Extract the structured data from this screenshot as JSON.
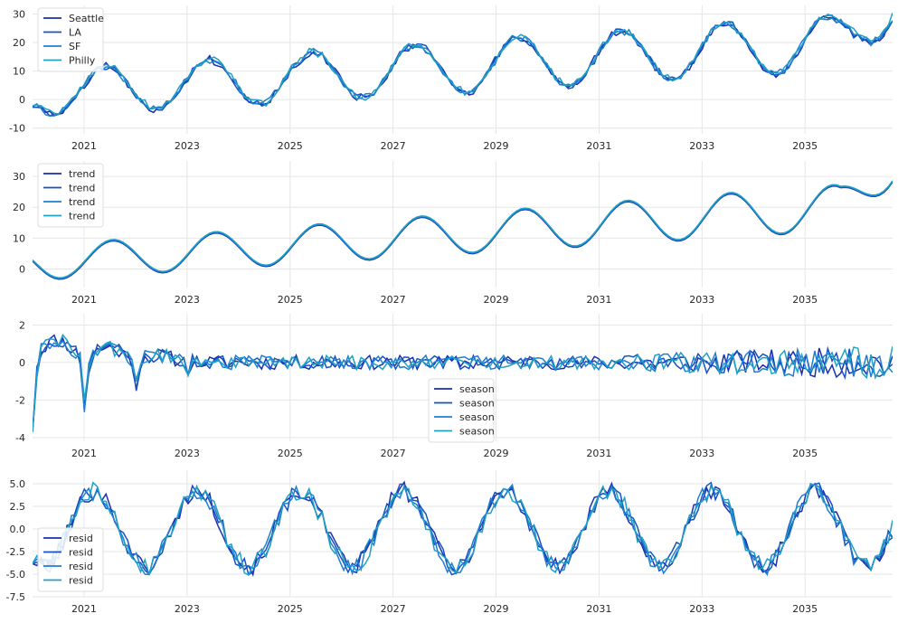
{
  "chart_data": [
    {
      "type": "line",
      "x_ticks": [
        "2021",
        "2023",
        "2025",
        "2027",
        "2029",
        "2031",
        "2033",
        "2035"
      ],
      "y_ticks": [
        -10,
        0,
        10,
        20,
        30
      ],
      "ylim": [
        -12,
        33
      ],
      "legend_position": "top-left",
      "grid": true,
      "series": [
        {
          "name": "Seattle",
          "color": "#1a2fb0"
        },
        {
          "name": "LA",
          "color": "#1552c2"
        },
        {
          "name": "SF",
          "color": "#1e7fd0"
        },
        {
          "name": "Philly",
          "color": "#1fa0c4"
        }
      ]
    },
    {
      "type": "line",
      "x_ticks": [
        "2021",
        "2023",
        "2025",
        "2027",
        "2029",
        "2031",
        "2033",
        "2035"
      ],
      "y_ticks": [
        0,
        10,
        20,
        30
      ],
      "ylim": [
        -6,
        35
      ],
      "legend_position": "top-left",
      "grid": true,
      "series": [
        {
          "name": "trend",
          "color": "#1a2fb0"
        },
        {
          "name": "trend",
          "color": "#1552c2"
        },
        {
          "name": "trend",
          "color": "#1e7fd0"
        },
        {
          "name": "trend",
          "color": "#1fa0c4"
        }
      ]
    },
    {
      "type": "line",
      "x_ticks": [
        "2021",
        "2023",
        "2025",
        "2027",
        "2029",
        "2031",
        "2033",
        "2035"
      ],
      "y_ticks": [
        -4,
        -2,
        0,
        2
      ],
      "ylim": [
        -4.2,
        2.6
      ],
      "legend_position": "center",
      "grid": true,
      "series": [
        {
          "name": "season",
          "color": "#1a2fb0"
        },
        {
          "name": "season",
          "color": "#1552c2"
        },
        {
          "name": "season",
          "color": "#1e7fd0"
        },
        {
          "name": "season",
          "color": "#1fa0c4"
        }
      ]
    },
    {
      "type": "line",
      "x_ticks": [
        "2021",
        "2023",
        "2025",
        "2027",
        "2029",
        "2031",
        "2033",
        "2035"
      ],
      "y_ticks": [
        "-7.5",
        "-5.0",
        "-2.5",
        "0.0",
        "2.5",
        "5.0"
      ],
      "ylim": [
        -7.5,
        6.5
      ],
      "legend_position": "bottom-left",
      "grid": true,
      "series": [
        {
          "name": "resid",
          "color": "#1a2fb0"
        },
        {
          "name": "resid",
          "color": "#1552c2"
        },
        {
          "name": "resid",
          "color": "#1e7fd0"
        },
        {
          "name": "resid",
          "color": "#1fa0c4"
        }
      ]
    }
  ]
}
